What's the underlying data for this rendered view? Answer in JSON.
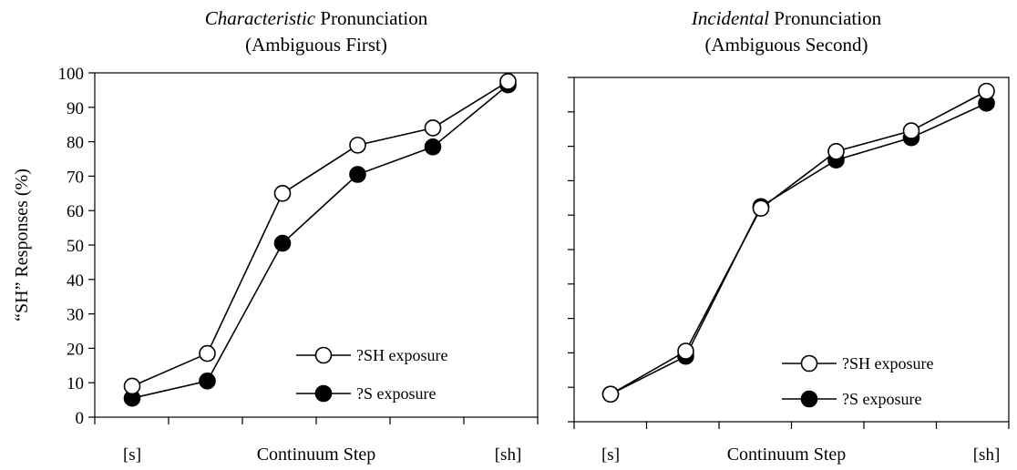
{
  "chart_data": [
    {
      "type": "line",
      "title_italic": "Characteristic",
      "title_rest": " Pronunciation",
      "subtitle": "(Ambiguous First)",
      "xlabel": "Continuum Step",
      "ylabel": "“SH” Responses (%)",
      "x_tick_labels": [
        "[s]",
        "",
        "",
        "",
        "",
        "[sh]"
      ],
      "x": [
        1,
        2,
        3,
        4,
        5,
        6
      ],
      "ylim": [
        0,
        100
      ],
      "yticks": [
        0,
        10,
        20,
        30,
        40,
        50,
        60,
        70,
        80,
        90,
        100
      ],
      "show_y_tick_labels": true,
      "legend_position": "bottom-right",
      "series": [
        {
          "name": "?SH exposure",
          "marker": "open-circle",
          "values": [
            9,
            18.5,
            65,
            79,
            84,
            97.5
          ]
        },
        {
          "name": "?S exposure",
          "marker": "filled-circle",
          "values": [
            5.5,
            10.5,
            50.5,
            70.5,
            78.5,
            96.5
          ]
        }
      ]
    },
    {
      "type": "line",
      "title_italic": "Incidental",
      "title_rest": " Pronunciation",
      "subtitle": "(Ambiguous Second)",
      "xlabel": "Continuum Step",
      "ylabel": "",
      "x_tick_labels": [
        "[s]",
        "",
        "",
        "",
        "",
        "[sh]"
      ],
      "x": [
        1,
        2,
        3,
        4,
        5,
        6
      ],
      "ylim": [
        0,
        100
      ],
      "yticks": [
        0,
        10,
        20,
        30,
        40,
        50,
        60,
        70,
        80,
        90,
        100
      ],
      "show_y_tick_labels": false,
      "legend_position": "bottom-right",
      "series": [
        {
          "name": "?SH exposure",
          "marker": "open-circle",
          "values": [
            8,
            20.5,
            62,
            78.5,
            84.5,
            96
          ]
        },
        {
          "name": "?S exposure",
          "marker": "filled-circle",
          "values": [
            8,
            19,
            62.5,
            76,
            82.5,
            92.5
          ]
        }
      ]
    }
  ]
}
